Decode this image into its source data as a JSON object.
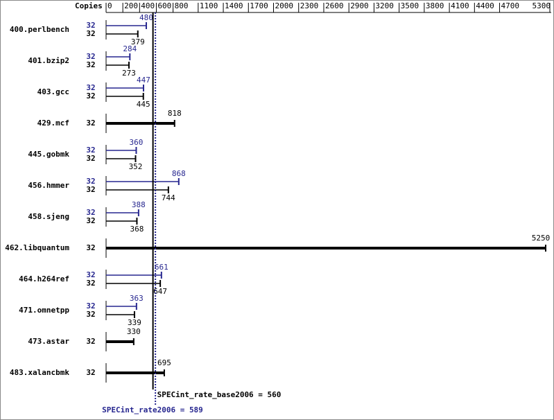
{
  "chart_data": {
    "type": "bar",
    "orientation": "horizontal",
    "copies_label": "Copies",
    "categories": [
      "400.perlbench",
      "401.bzip2",
      "403.gcc",
      "429.mcf",
      "445.gobmk",
      "456.hmmer",
      "458.sjeng",
      "462.libquantum",
      "464.h264ref",
      "471.omnetpp",
      "473.astar",
      "483.xalancbmk"
    ],
    "series": [
      {
        "name": "SPECint_rate2006",
        "color": "#26268f",
        "copies": [
          32,
          32,
          32,
          null,
          32,
          32,
          32,
          null,
          32,
          32,
          null,
          null
        ],
        "values": [
          480,
          284,
          447,
          null,
          360,
          868,
          388,
          null,
          661,
          363,
          null,
          null
        ]
      },
      {
        "name": "SPECint_rate_base2006",
        "color": "#000000",
        "copies": [
          32,
          32,
          32,
          32,
          32,
          32,
          32,
          32,
          32,
          32,
          32,
          32
        ],
        "values": [
          379,
          273,
          445,
          818,
          352,
          744,
          368,
          5250,
          647,
          339,
          330,
          695
        ]
      }
    ],
    "reference_lines": [
      {
        "label": "SPECint_rate_base2006 = 560",
        "value": 560,
        "color": "#000000",
        "dashed": false
      },
      {
        "label": "SPECint_rate2006 = 589",
        "value": 589,
        "color": "#26268f",
        "dashed": true
      }
    ],
    "xlim": [
      0,
      5300
    ],
    "xticks": [
      0,
      200,
      400,
      600,
      800,
      1100,
      1400,
      1700,
      2000,
      2300,
      2600,
      2900,
      3200,
      3500,
      3800,
      4100,
      4400,
      4700,
      5300
    ]
  }
}
